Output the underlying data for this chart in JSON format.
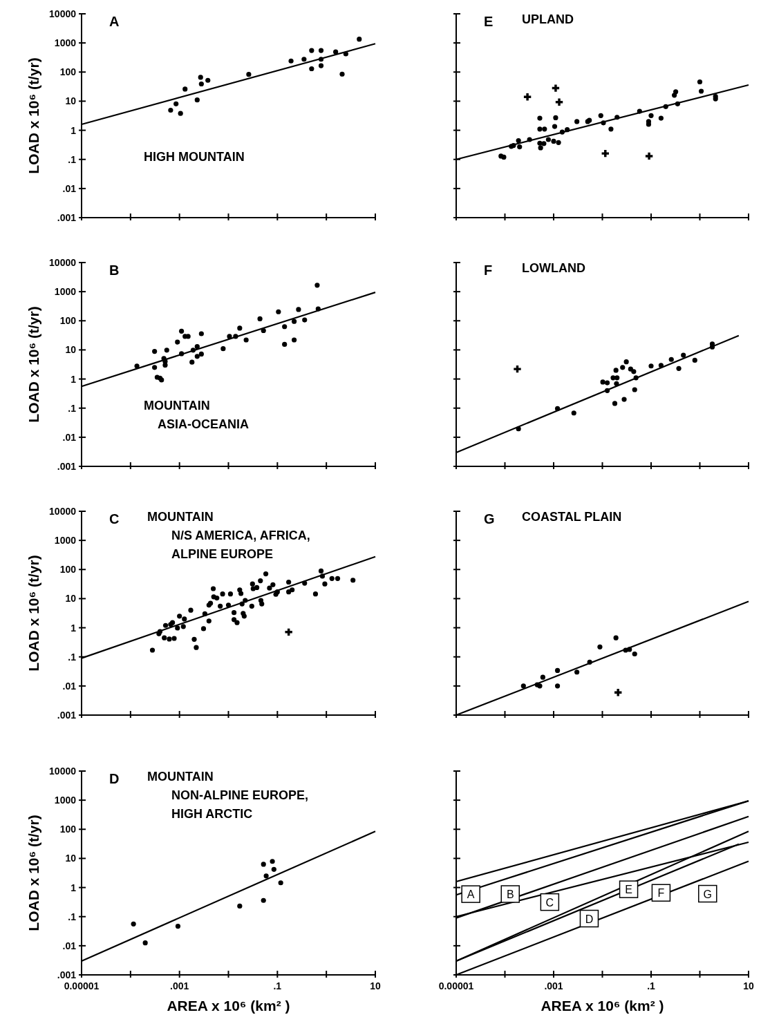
{
  "chart_data": [
    {
      "type": "scatter",
      "log": "xy",
      "title": "A",
      "subtitle": "HIGH MOUNTAIN",
      "ylabel": "LOAD x 10⁶ (t/yr)",
      "xlim": [
        1e-05,
        10
      ],
      "ylim": [
        0.001,
        10000
      ],
      "tick_labels": "y",
      "xticks": [
        {
          "value": 1e-05,
          "label": null
        },
        {
          "value": 0.0001,
          "label": null
        },
        {
          "value": 0.001,
          "label": null
        },
        {
          "value": 0.01,
          "label": null
        },
        {
          "value": 0.1,
          "label": null
        },
        {
          "value": 1,
          "label": null
        },
        {
          "value": 10,
          "label": null
        }
      ],
      "yticks": [
        10000,
        1000,
        100,
        10,
        1,
        {
          "value": 0.1,
          "label": ".1"
        },
        {
          "value": 0.01,
          "label": ".01"
        },
        {
          "value": 0.001,
          "label": ".001"
        }
      ],
      "series": [
        {
          "marker": "circle",
          "color": "#000000",
          "x": [
            0.00066,
            0.00085,
            0.00105,
            0.0013,
            0.0023,
            0.0027,
            0.0028,
            0.0038,
            0.026,
            0.19,
            0.35,
            0.5,
            0.5,
            0.78,
            0.78,
            0.78,
            1.55,
            2.1,
            2.5,
            4.7
          ],
          "values": [
            4.9,
            8.1,
            3.8,
            26,
            11,
            66,
            39,
            52,
            83,
            240,
            275,
            550,
            130,
            550,
            275,
            165,
            490,
            85,
            420,
            1350
          ]
        },
        {
          "type": "line",
          "color": "#000000",
          "x": [
            1e-05,
            10
          ],
          "values": [
            1.6,
            940
          ]
        }
      ]
    },
    {
      "type": "scatter",
      "log": "xy",
      "title": "E",
      "subtitle": "UPLAND",
      "xlim": [
        1e-05,
        10
      ],
      "ylim": [
        0.001,
        10000
      ],
      "tick_labels": false,
      "xticks": [
        {
          "value": 1e-05,
          "label": null
        },
        {
          "value": 0.0001,
          "label": null
        },
        {
          "value": 0.001,
          "label": null
        },
        {
          "value": 0.01,
          "label": null
        },
        {
          "value": 0.1,
          "label": null
        },
        {
          "value": 1,
          "label": null
        },
        {
          "value": 10,
          "label": null
        }
      ],
      "yticks": [
        {
          "value": 10000,
          "label": null
        },
        {
          "value": 1000,
          "label": null
        },
        {
          "value": 100,
          "label": null
        },
        {
          "value": 10,
          "label": null
        },
        {
          "value": 1,
          "label": null
        },
        {
          "value": 0.1,
          "label": null
        },
        {
          "value": 0.01,
          "label": null
        },
        {
          "value": 0.001,
          "label": null
        }
      ],
      "series": [
        {
          "marker": "circle",
          "color": "#000000",
          "x": [
            8.3e-05,
            9.5e-05,
            0.000135,
            0.00015,
            0.00019,
            0.0002,
            0.00032,
            0.00052,
            0.00052,
            0.00052,
            0.00054,
            0.00065,
            0.00063,
            0.00078,
            0.001,
            0.00105,
            0.0011,
            0.00126,
            0.0015,
            0.0019,
            0.003,
            0.005,
            0.0054,
            0.0093,
            0.0105,
            0.015,
            0.02,
            0.058,
            0.089,
            0.089,
            0.1,
            0.16,
            0.2,
            0.3,
            0.32,
            0.35,
            1.0,
            1.07,
            2.1,
            2.1
          ],
          "values": [
            0.13,
            0.12,
            0.28,
            0.3,
            0.44,
            0.27,
            0.48,
            2.6,
            1.1,
            0.36,
            0.25,
            1.1,
            0.35,
            0.48,
            0.42,
            1.35,
            2.7,
            0.38,
            0.87,
            1.05,
            2.0,
            2.0,
            2.2,
            3.2,
            1.8,
            1.1,
            2.8,
            4.5,
            2.0,
            1.6,
            3.2,
            2.6,
            6.5,
            16,
            21,
            8.1,
            46,
            22,
            14.5,
            12
          ]
        },
        {
          "marker": "cross",
          "color": "#000000",
          "x": [
            0.00029,
            0.0011,
            0.0013,
            0.0115,
            0.091
          ],
          "values": [
            14,
            28,
            9.3,
            0.16,
            0.13
          ]
        },
        {
          "type": "line",
          "color": "#000000",
          "x": [
            1e-05,
            10
          ],
          "values": [
            0.1,
            36
          ]
        }
      ]
    },
    {
      "type": "scatter",
      "log": "xy",
      "title": "B",
      "subtitle": "MOUNTAIN\nASIA-OCEANIA",
      "ylabel": "LOAD x 10⁶ (t/yr)",
      "xlim": [
        1e-05,
        10
      ],
      "ylim": [
        0.001,
        10000
      ],
      "tick_labels": "y",
      "xticks": [
        {
          "value": 1e-05,
          "label": null
        },
        {
          "value": 0.0001,
          "label": null
        },
        {
          "value": 0.001,
          "label": null
        },
        {
          "value": 0.01,
          "label": null
        },
        {
          "value": 0.1,
          "label": null
        },
        {
          "value": 1,
          "label": null
        },
        {
          "value": 10,
          "label": null
        }
      ],
      "yticks": [
        10000,
        1000,
        100,
        10,
        1,
        {
          "value": 0.1,
          "label": ".1"
        },
        {
          "value": 0.01,
          "label": ".01"
        },
        {
          "value": 0.001,
          "label": ".001"
        }
      ],
      "series": [
        {
          "marker": "circle",
          "color": "#000000",
          "x": [
            0.000135,
            0.00031,
            0.00031,
            0.00035,
            0.0004,
            0.00043,
            0.00048,
            0.00051,
            0.00051,
            0.00055,
            0.00091,
            0.0011,
            0.0013,
            0.0015,
            0.0011,
            0.0018,
            0.0019,
            0.0023,
            0.0023,
            0.0028,
            0.0028,
            0.0078,
            0.0105,
            0.014,
            0.017,
            0.023,
            0.044,
            0.052,
            0.105,
            0.14,
            0.14,
            0.22,
            0.22,
            0.27,
            0.36,
            0.65,
            0.68
          ],
          "values": [
            2.8,
            8.9,
            2.5,
            1.15,
            1.07,
            0.93,
            5.1,
            4.0,
            3.0,
            9.8,
            18.6,
            44,
            29,
            29,
            7.4,
            3.8,
            9.8,
            13,
            6.0,
            36,
            7.2,
            11,
            29,
            29,
            56,
            22,
            117,
            46,
            204,
            63,
            15.5,
            95,
            22,
            245,
            107,
            1660,
            257
          ]
        },
        {
          "type": "line",
          "color": "#000000",
          "x": [
            1e-05,
            10
          ],
          "values": [
            0.56,
            950
          ]
        }
      ]
    },
    {
      "type": "scatter",
      "log": "xy",
      "title": "F",
      "subtitle": "LOWLAND",
      "xlim": [
        1e-05,
        10
      ],
      "ylim": [
        0.001,
        10000
      ],
      "tick_labels": false,
      "xticks": [
        {
          "value": 1e-05,
          "label": null
        },
        {
          "value": 0.0001,
          "label": null
        },
        {
          "value": 0.001,
          "label": null
        },
        {
          "value": 0.01,
          "label": null
        },
        {
          "value": 0.1,
          "label": null
        },
        {
          "value": 1,
          "label": null
        },
        {
          "value": 10,
          "label": null
        }
      ],
      "yticks": [
        {
          "value": 10000,
          "label": null
        },
        {
          "value": 1000,
          "label": null
        },
        {
          "value": 100,
          "label": null
        },
        {
          "value": 10,
          "label": null
        },
        {
          "value": 1,
          "label": null
        },
        {
          "value": 0.1,
          "label": null
        },
        {
          "value": 0.01,
          "label": null
        },
        {
          "value": 0.001,
          "label": null
        }
      ],
      "series": [
        {
          "marker": "circle",
          "color": "#000000",
          "x": [
            0.00019,
            0.0012,
            0.0026,
            0.0102,
            0.0126,
            0.0126,
            0.0166,
            0.018,
            0.019,
            0.02,
            0.0195,
            0.026,
            0.028,
            0.031,
            0.038,
            0.044,
            0.046,
            0.049,
            0.1,
            0.16,
            0.26,
            0.37,
            0.46,
            0.79,
            1.8,
            1.8
          ],
          "values": [
            0.0195,
            0.096,
            0.068,
            0.79,
            0.74,
            0.4,
            1.1,
            0.145,
            2.0,
            1.1,
            0.69,
            2.5,
            0.2,
            3.9,
            2.2,
            1.8,
            0.43,
            1.1,
            2.8,
            2.95,
            4.7,
            2.3,
            6.6,
            4.4,
            16,
            12.6
          ]
        },
        {
          "marker": "cross",
          "color": "#000000",
          "x": [
            0.00018
          ],
          "values": [
            2.2
          ]
        },
        {
          "type": "line",
          "color": "#000000",
          "x": [
            1e-05,
            6.3
          ],
          "values": [
            0.003,
            31
          ]
        }
      ]
    },
    {
      "type": "scatter",
      "log": "xy",
      "title": "C",
      "subtitle": "MOUNTAIN\nN/S AMERICA, AFRICA,\nALPINE EUROPE",
      "ylabel": "LOAD x 10⁶ (t/yr)",
      "xlim": [
        1e-05,
        10
      ],
      "ylim": [
        0.001,
        10000
      ],
      "tick_labels": "y",
      "xticks": [
        {
          "value": 1e-05,
          "label": null
        },
        {
          "value": 0.0001,
          "label": null
        },
        {
          "value": 0.001,
          "label": null
        },
        {
          "value": 0.01,
          "label": null
        },
        {
          "value": 0.1,
          "label": null
        },
        {
          "value": 1,
          "label": null
        },
        {
          "value": 10,
          "label": null
        }
      ],
      "yticks": [
        10000,
        1000,
        100,
        10,
        1,
        {
          "value": 0.1,
          "label": ".1"
        },
        {
          "value": 0.01,
          "label": ".01"
        },
        {
          "value": 0.001,
          "label": ".001"
        }
      ],
      "series": [
        {
          "marker": "circle",
          "color": "#000000",
          "x": [
            0.00028,
            0.00038,
            0.0004,
            0.00049,
            0.00052,
            0.00062,
            0.00066,
            0.00078,
            0.00072,
            0.00091,
            0.001,
            0.0012,
            0.00126,
            0.0017,
            0.002,
            0.0022,
            0.0031,
            0.0033,
            0.004,
            0.004,
            0.0043,
            0.0049,
            0.005,
            0.0058,
            0.0068,
            0.0076,
            0.01,
            0.011,
            0.013,
            0.013,
            0.015,
            0.017,
            0.018,
            0.019,
            0.02,
            0.021,
            0.022,
            0.03,
            0.031,
            0.032,
            0.038,
            0.045,
            0.046,
            0.048,
            0.058,
            0.069,
            0.081,
            0.093,
            0.1,
            0.17,
            0.17,
            0.2,
            0.36,
            0.6,
            0.78,
            0.83,
            0.93,
            1.3,
            1.7,
            3.5
          ],
          "values": [
            0.17,
            0.62,
            0.74,
            0.45,
            1.2,
            0.41,
            1.3,
            0.43,
            1.5,
            0.98,
            2.5,
            1.1,
            2.0,
            4.0,
            0.4,
            0.21,
            0.93,
            3.0,
            1.7,
            6.0,
            6.9,
            22,
            11.5,
            10.5,
            5.5,
            14.5,
            6.0,
            14.5,
            3.3,
            1.9,
            1.5,
            20,
            15,
            6.6,
            3.1,
            2.5,
            8.7,
            5.5,
            32,
            22,
            24,
            41,
            8.7,
            6.6,
            71,
            23,
            30,
            14,
            17,
            37,
            17,
            20,
            34,
            14.5,
            89,
            59,
            32,
            49,
            49,
            43
          ]
        },
        {
          "marker": "cross",
          "color": "#000000",
          "x": [
            0.17
          ],
          "values": [
            0.71
          ]
        },
        {
          "type": "line",
          "color": "#000000",
          "x": [
            1e-05,
            10
          ],
          "values": [
            0.09,
            275
          ]
        }
      ]
    },
    {
      "type": "scatter",
      "log": "xy",
      "title": "G",
      "subtitle": "COASTAL PLAIN",
      "xlim": [
        1e-05,
        10
      ],
      "ylim": [
        0.001,
        10000
      ],
      "tick_labels": false,
      "xticks": [
        {
          "value": 1e-05,
          "label": null
        },
        {
          "value": 0.0001,
          "label": null
        },
        {
          "value": 0.001,
          "label": null
        },
        {
          "value": 0.01,
          "label": null
        },
        {
          "value": 0.1,
          "label": null
        },
        {
          "value": 1,
          "label": null
        },
        {
          "value": 10,
          "label": null
        }
      ],
      "yticks": [
        {
          "value": 10000,
          "label": null
        },
        {
          "value": 1000,
          "label": null
        },
        {
          "value": 100,
          "label": null
        },
        {
          "value": 10,
          "label": null
        },
        {
          "value": 1,
          "label": null
        },
        {
          "value": 0.1,
          "label": null
        },
        {
          "value": 0.01,
          "label": null
        },
        {
          "value": 0.001,
          "label": null
        }
      ],
      "series": [
        {
          "marker": "circle",
          "color": "#000000",
          "x": [
            0.00024,
            0.00046,
            0.00052,
            0.0006,
            0.0012,
            0.0012,
            0.003,
            0.0055,
            0.0089,
            0.019,
            0.03,
            0.036,
            0.046
          ],
          "values": [
            0.01,
            0.011,
            0.01,
            0.02,
            0.034,
            0.01,
            0.03,
            0.066,
            0.22,
            0.45,
            0.17,
            0.18,
            0.126
          ]
        },
        {
          "marker": "cross",
          "color": "#000000",
          "x": [
            0.021
          ],
          "values": [
            0.006
          ]
        },
        {
          "type": "line",
          "color": "#000000",
          "x": [
            1e-05,
            10
          ],
          "values": [
            0.001,
            8
          ]
        }
      ]
    },
    {
      "type": "scatter",
      "log": "xy",
      "title": "D",
      "subtitle": "MOUNTAIN\nNON-ALPINE EUROPE,\nHIGH ARCTIC",
      "xlabel": "AREA x 10⁶ (km² )",
      "ylabel": "LOAD x 10⁶ (t/yr)",
      "xlim": [
        1e-05,
        10
      ],
      "ylim": [
        0.001,
        10000
      ],
      "xticks": [
        {
          "value": 1e-05,
          "label": "0.00001"
        },
        {
          "value": 0.0001,
          "label": null
        },
        {
          "value": 0.001,
          "label": ".001"
        },
        {
          "value": 0.01,
          "label": null
        },
        {
          "value": 0.1,
          "label": ".1"
        },
        {
          "value": 1,
          "label": null
        },
        10
      ],
      "yticks": [
        10000,
        1000,
        100,
        10,
        1,
        {
          "value": 0.1,
          "label": ".1"
        },
        {
          "value": 0.01,
          "label": ".01"
        },
        {
          "value": 0.001,
          "label": ".001"
        }
      ],
      "series": [
        {
          "marker": "circle",
          "color": "#000000",
          "x": [
            0.000115,
            0.0002,
            0.00093,
            0.017,
            0.052,
            0.052,
            0.059,
            0.079,
            0.085,
            0.117
          ],
          "values": [
            0.056,
            0.0126,
            0.047,
            0.23,
            6.3,
            0.36,
            2.5,
            7.9,
            4.2,
            1.45
          ]
        },
        {
          "type": "line",
          "color": "#000000",
          "x": [
            1e-05,
            10
          ],
          "values": [
            0.003,
            85
          ]
        }
      ]
    },
    {
      "type": "line",
      "log": "xy",
      "xlabel": "AREA x 10⁶ (km² )",
      "xlim": [
        1e-05,
        10
      ],
      "ylim": [
        0.001,
        10000
      ],
      "tick_labels": "x",
      "xticks": [
        {
          "value": 1e-05,
          "label": "0.00001"
        },
        {
          "value": 0.0001,
          "label": null
        },
        {
          "value": 0.001,
          "label": ".001"
        },
        {
          "value": 0.01,
          "label": null
        },
        {
          "value": 0.1,
          "label": ".1"
        },
        {
          "value": 1,
          "label": null
        },
        10
      ],
      "yticks": [
        {
          "value": 10000,
          "label": null
        },
        {
          "value": 1000,
          "label": null
        },
        {
          "value": 100,
          "label": null
        },
        {
          "value": 10,
          "label": null
        },
        {
          "value": 1,
          "label": null
        },
        {
          "value": 0.1,
          "label": null
        },
        {
          "value": 0.01,
          "label": null
        },
        {
          "value": 0.001,
          "label": null
        }
      ],
      "series": [
        {
          "name": "A",
          "color": "#000000",
          "x": [
            1e-05,
            10
          ],
          "values": [
            1.6,
            940
          ]
        },
        {
          "name": "B",
          "color": "#000000",
          "x": [
            1e-05,
            10
          ],
          "values": [
            0.56,
            950
          ]
        },
        {
          "name": "C",
          "color": "#000000",
          "x": [
            1e-05,
            10
          ],
          "values": [
            0.09,
            275
          ]
        },
        {
          "name": "D",
          "color": "#000000",
          "x": [
            1e-05,
            10
          ],
          "values": [
            0.003,
            85
          ]
        },
        {
          "name": "E",
          "color": "#000000",
          "x": [
            1e-05,
            10
          ],
          "values": [
            0.1,
            36
          ]
        },
        {
          "name": "F",
          "color": "#000000",
          "x": [
            1e-05,
            6.3
          ],
          "values": [
            0.003,
            31
          ]
        },
        {
          "name": "G",
          "color": "#000000",
          "x": [
            1e-05,
            10
          ],
          "values": [
            0.001,
            8
          ]
        }
      ]
    }
  ]
}
